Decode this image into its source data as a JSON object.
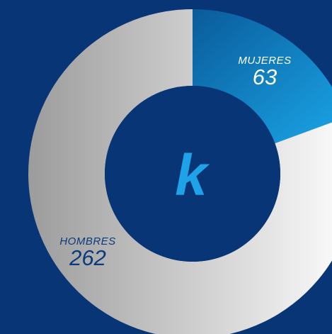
{
  "chart_data": {
    "type": "pie",
    "categories": [
      "MUJERES",
      "HOMBRES"
    ],
    "values": [
      63,
      262
    ],
    "center_label": "k",
    "colors": {
      "MUJERES": [
        "#0a5b9a",
        "#1aa6e8"
      ],
      "HOMBRES": [
        "#9c9c9c",
        "#ffffff"
      ],
      "background": "#073576",
      "center": "#073576",
      "center_text": "#1ea3e8"
    }
  },
  "labels": {
    "mujeres_name": "MUJERES",
    "mujeres_value": "63",
    "hombres_name": "HOMBRES",
    "hombres_value": "262"
  }
}
